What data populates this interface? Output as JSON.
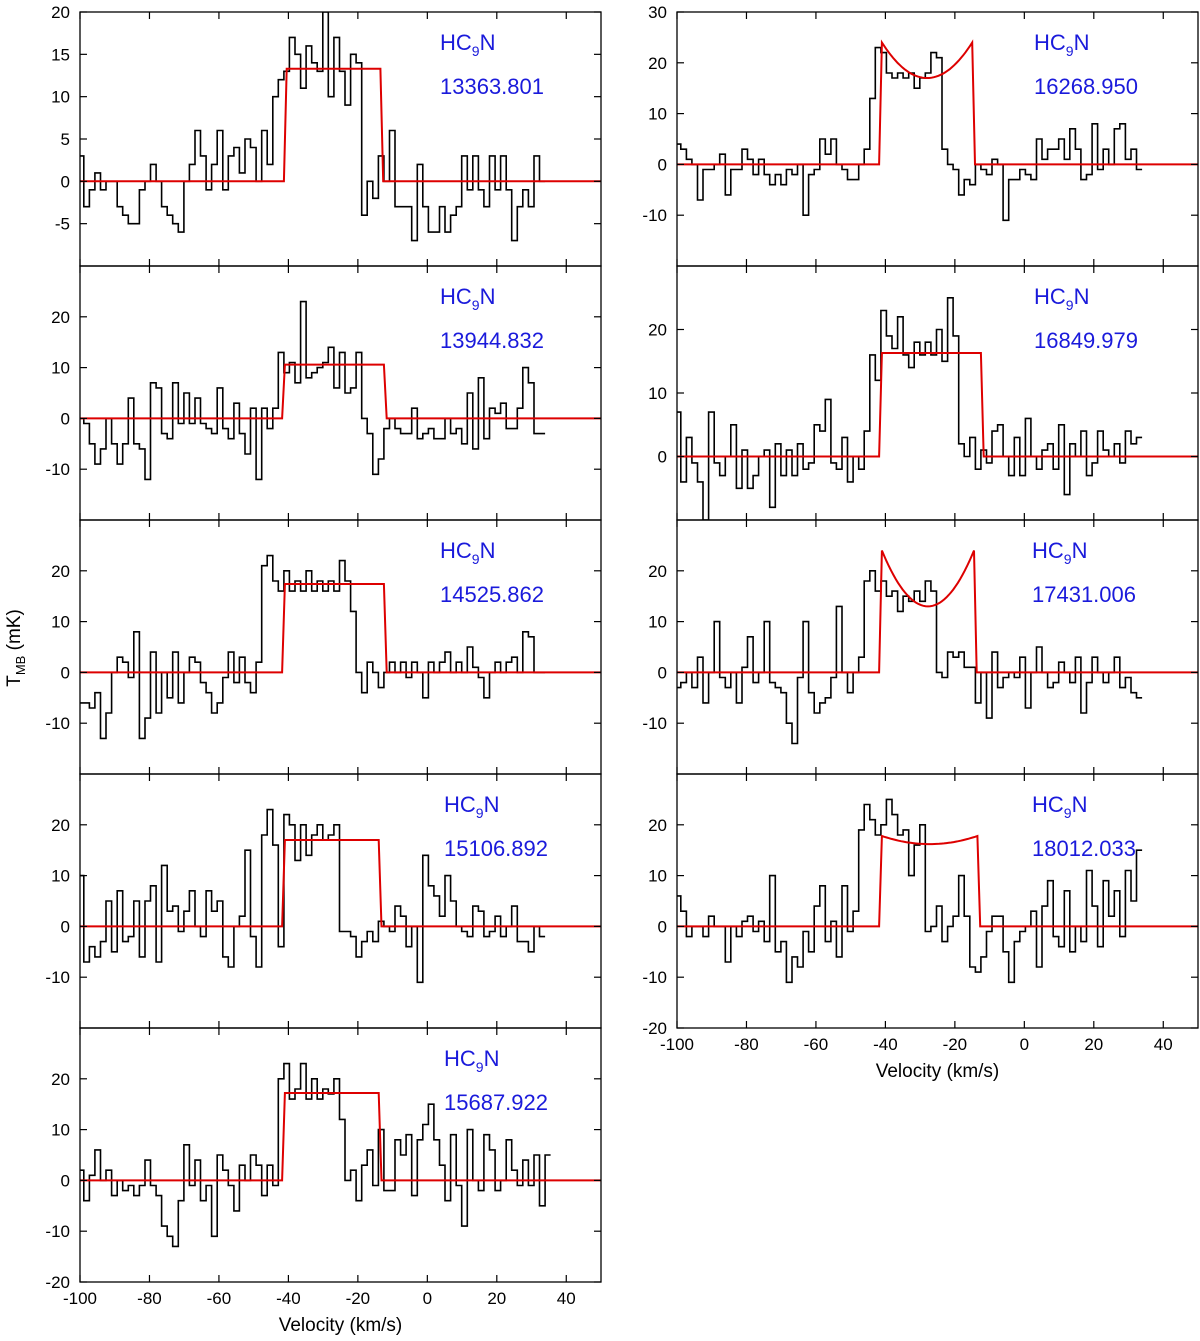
{
  "figure": {
    "xlabel": "Velocity (km/s)",
    "ylabel_main": "T",
    "ylabel_sub": "MB",
    "ylabel_unit": " (mK)",
    "species_main": "HC",
    "species_sub": "9",
    "species_end": "N"
  },
  "colors": {
    "spectrum": "#000000",
    "fit": "#dd0000",
    "label": "#1a1adb",
    "axis": "#000000"
  },
  "chart_data": [
    {
      "type": "line",
      "title": "13363.801",
      "ylim": [
        -10,
        20
      ],
      "yticks": [
        -5,
        0,
        5,
        10,
        15,
        20
      ],
      "xlim": [
        -100,
        50
      ],
      "xticks": [
        -100,
        -80,
        -60,
        -40,
        -20,
        0,
        20,
        40
      ],
      "fit": {
        "v1": -40.5,
        "v2": -13.5,
        "t_low": 13.3,
        "t_high": 13.3
      },
      "series": [
        {
          "name": "spectrum",
          "start": -100.5,
          "step": 1.6,
          "values": [
            3,
            -3,
            -1,
            1,
            -1,
            0,
            0,
            -3,
            -4,
            -5,
            -5,
            -1,
            0,
            2,
            0,
            -3,
            -4,
            -5,
            -6,
            0,
            2,
            6,
            3,
            -1,
            2,
            6,
            -1,
            3,
            4,
            1,
            5,
            4,
            0,
            6,
            2,
            10,
            12,
            13,
            17,
            15,
            11,
            16,
            14,
            13,
            20,
            10,
            17,
            13,
            9,
            15,
            14,
            -4,
            0,
            -2,
            3,
            0,
            6,
            -3,
            -3,
            -3,
            -7,
            2,
            -3,
            -6,
            -6,
            -3,
            -6,
            -4,
            -3,
            3,
            -1,
            3,
            -1,
            -3,
            3,
            -1,
            3,
            -1,
            -7,
            -3,
            -1,
            -3,
            3,
            0
          ]
        }
      ]
    },
    {
      "type": "line",
      "title": "13944.832",
      "ylim": [
        -20,
        30
      ],
      "yticks": [
        -10,
        0,
        10,
        20
      ],
      "xlim": [
        -100,
        50
      ],
      "xticks": [
        -100,
        -80,
        -60,
        -40,
        -20,
        0,
        20,
        40
      ],
      "fit": {
        "v1": -41,
        "v2": -12.5,
        "t_low": 10.6,
        "t_high": 10.6
      },
      "series": [
        {
          "name": "spectrum",
          "start": -100.5,
          "step": 1.6,
          "values": [
            0,
            -1,
            -5,
            -9,
            -6,
            0,
            -5,
            -9,
            -5,
            4,
            -5,
            -6,
            -12,
            7,
            6,
            -3,
            -4,
            7,
            -1,
            5,
            -1,
            4,
            -1,
            -2,
            -3,
            6,
            -2,
            -4,
            3,
            -3,
            -7,
            2,
            -12,
            2,
            -2,
            2,
            13,
            9,
            11,
            7,
            23,
            8,
            9,
            10,
            11,
            14,
            6,
            13,
            5,
            6,
            13,
            0,
            -3,
            -11,
            -8,
            -2,
            0,
            -2,
            -3,
            -3,
            2,
            -4,
            -3,
            -2,
            -4,
            -4,
            0,
            -3,
            -2,
            -5,
            5,
            -6,
            8,
            -4,
            2,
            1,
            3,
            -2,
            -2,
            2,
            10,
            7,
            -3,
            -3
          ]
        }
      ]
    },
    {
      "type": "line",
      "title": "14525.862",
      "ylim": [
        -20,
        30
      ],
      "yticks": [
        -10,
        0,
        10,
        20
      ],
      "xlim": [
        -100,
        50
      ],
      "xticks": [
        -100,
        -80,
        -60,
        -40,
        -20,
        0,
        20,
        40
      ],
      "fit": {
        "v1": -41,
        "v2": -12.5,
        "t_low": 17.4,
        "t_high": 17.4
      },
      "series": [
        {
          "name": "spectrum",
          "start": -100.5,
          "step": 1.6,
          "values": [
            -6,
            -6,
            -7,
            -4,
            -13,
            -8,
            0,
            3,
            2,
            -1,
            8,
            -13,
            -9,
            4,
            -8,
            0,
            -5,
            4,
            -6,
            0,
            3,
            2,
            -2,
            -4,
            -8,
            -6,
            -1,
            4,
            -2,
            3,
            -2,
            -4,
            2,
            21,
            23,
            18,
            16,
            20,
            16,
            18,
            16,
            20,
            16,
            18,
            16,
            18,
            16,
            22,
            18,
            12,
            0,
            -4,
            2,
            0,
            -3,
            0,
            2,
            0,
            2,
            -1,
            2,
            0,
            -5,
            2,
            0,
            2,
            4,
            0,
            2,
            0,
            5,
            1,
            -1,
            -5,
            0,
            2,
            0,
            2,
            3,
            0,
            8,
            7,
            0,
            0
          ]
        }
      ]
    },
    {
      "type": "line",
      "title": "15106.892",
      "ylim": [
        -20,
        30
      ],
      "yticks": [
        -10,
        0,
        10,
        20
      ],
      "xlim": [
        -100,
        50
      ],
      "xticks": [
        -100,
        -80,
        -60,
        -40,
        -20,
        0,
        20,
        40
      ],
      "fit": {
        "v1": -41,
        "v2": -14,
        "t_low": 17.0,
        "t_high": 17.0
      },
      "series": [
        {
          "name": "spectrum",
          "start": -100.5,
          "step": 1.6,
          "values": [
            10,
            -7,
            -4,
            -6,
            -3,
            5,
            -5,
            7,
            -3,
            -2,
            5,
            -6,
            5,
            8,
            -7,
            12,
            3,
            4,
            -1,
            3,
            7,
            0,
            -2,
            7,
            3,
            5,
            -6,
            -8,
            0,
            2,
            15,
            -2,
            -8,
            18,
            23,
            16,
            -4,
            22,
            20,
            13,
            20,
            14,
            18,
            20,
            17,
            18,
            20,
            -1,
            -1,
            -2,
            -6,
            -3,
            -1,
            -3,
            1,
            0,
            -1,
            4,
            2,
            -4,
            0,
            -11,
            14,
            8,
            6,
            2,
            10,
            5,
            0,
            -1,
            -2,
            4,
            3,
            -2,
            -1,
            2,
            -2,
            0,
            4,
            -3,
            -3,
            -5,
            0,
            -2
          ]
        }
      ]
    },
    {
      "type": "line",
      "title": "15687.922",
      "ylim": [
        -20,
        30
      ],
      "yticks": [
        -20,
        -10,
        0,
        10,
        20
      ],
      "xlim": [
        -100,
        50
      ],
      "xticks": [
        -100,
        -80,
        -60,
        -40,
        -20,
        0,
        20,
        40
      ],
      "fit": {
        "v1": -41,
        "v2": -14,
        "t_low": 17.2,
        "t_high": 17.2
      },
      "series": [
        {
          "name": "spectrum",
          "start": -100.5,
          "step": 1.6,
          "values": [
            2,
            -4,
            1,
            6,
            0,
            2,
            -3,
            0,
            -2,
            -1,
            -3,
            -1,
            4,
            -1,
            -3,
            -9,
            -11,
            -13,
            -4,
            7,
            -1,
            4,
            -4,
            -1,
            -11,
            5,
            2,
            -1,
            -6,
            3,
            0,
            5,
            3,
            -3,
            3,
            -1,
            20,
            23,
            16,
            18,
            23,
            16,
            20,
            16,
            18,
            17,
            20,
            12,
            0,
            2,
            -4,
            3,
            6,
            -1,
            10,
            -2,
            -2,
            8,
            5,
            9,
            -3,
            8,
            11,
            15,
            8,
            3,
            -4,
            9,
            -1,
            -9,
            10,
            0,
            -2,
            9,
            6,
            -2,
            0,
            8,
            2,
            -1,
            4,
            -1,
            5,
            -5,
            5
          ]
        }
      ]
    },
    {
      "type": "line",
      "title": "16268.950",
      "ylim": [
        -20,
        30
      ],
      "yticks": [
        -10,
        0,
        10,
        20,
        30
      ],
      "xlim": [
        -100,
        50
      ],
      "xticks": [
        -100,
        -80,
        -60,
        -40,
        -20,
        0,
        20,
        40
      ],
      "fit": {
        "v1": -41,
        "v2": -15,
        "t_low": 17.0,
        "t_high": 24.0
      },
      "series": [
        {
          "name": "spectrum",
          "start": -100.5,
          "step": 1.6,
          "values": [
            4,
            3,
            1,
            0,
            -7,
            -1,
            -1,
            0,
            2,
            -6,
            -1,
            -1,
            3,
            1,
            -2,
            1,
            -2,
            -4,
            -2,
            -4,
            -1,
            -2,
            0,
            -10,
            -2,
            -1,
            5,
            2,
            5,
            0,
            -1,
            -3,
            -3,
            0,
            3,
            13,
            23,
            22,
            18,
            17,
            18,
            17,
            18,
            15,
            17,
            18,
            22,
            21,
            3,
            0,
            -1,
            -6,
            -3,
            -4,
            0,
            -1,
            -2,
            1,
            0,
            -11,
            -3,
            -3,
            -1,
            -2,
            -3,
            5,
            1,
            3,
            3,
            5,
            1,
            7,
            3,
            -3,
            -2,
            8,
            -1,
            3,
            0,
            7,
            8,
            1,
            3,
            -1
          ]
        }
      ]
    },
    {
      "type": "line",
      "title": "16849.979",
      "ylim": [
        -10,
        30
      ],
      "yticks": [
        0,
        10,
        20
      ],
      "xlim": [
        -100,
        50
      ],
      "xticks": [
        -100,
        -80,
        -60,
        -40,
        -20,
        0,
        20,
        40
      ],
      "fit": {
        "v1": -41,
        "v2": -12.5,
        "t_low": 16.3,
        "t_high": 16.3
      },
      "series": [
        {
          "name": "spectrum",
          "start": -100.5,
          "step": 1.6,
          "values": [
            7,
            -4,
            3,
            -1,
            -4,
            -10,
            7,
            -1,
            -3,
            0,
            5,
            -5,
            1,
            -5,
            -3,
            0,
            1,
            -8,
            2,
            -3,
            1,
            -3,
            2,
            -2,
            -1,
            5,
            4,
            9,
            -1,
            -2,
            3,
            -4,
            0,
            -2,
            4,
            16,
            12,
            23,
            19,
            17,
            22,
            16,
            14,
            18,
            16,
            18,
            16,
            20,
            15,
            25,
            19,
            2,
            0,
            3,
            -2,
            1,
            -1,
            4,
            5,
            0,
            -3,
            3,
            -3,
            6,
            0,
            -2,
            1,
            2,
            -2,
            5,
            -6,
            2,
            0,
            4,
            -3,
            -1,
            4,
            1,
            0,
            2,
            -1,
            4,
            2,
            3
          ]
        }
      ]
    },
    {
      "type": "line",
      "title": "17431.006",
      "ylim": [
        -20,
        30
      ],
      "yticks": [
        -10,
        0,
        10,
        20
      ],
      "xlim": [
        -100,
        50
      ],
      "xticks": [
        -100,
        -80,
        -60,
        -40,
        -20,
        0,
        20,
        40
      ],
      "fit": {
        "v1": -41,
        "v2": -14.5,
        "t_low": 13.0,
        "t_high": 24.0
      },
      "series": [
        {
          "name": "spectrum",
          "start": -100.5,
          "step": 1.6,
          "values": [
            -3,
            -2,
            0,
            -3,
            3,
            -6,
            0,
            10,
            -1,
            -3,
            0,
            -6,
            1,
            7,
            -2,
            0,
            10,
            -2,
            -3,
            -4,
            -10,
            -14,
            -1,
            10,
            -4,
            -8,
            -6,
            -5,
            -1,
            13,
            0,
            -4,
            0,
            3,
            18,
            20,
            16,
            18,
            15,
            16,
            12,
            15,
            14,
            16,
            14,
            18,
            16,
            0,
            -1,
            4,
            3,
            4,
            1,
            1,
            -6,
            0,
            -9,
            4,
            -3,
            -1,
            0,
            -1,
            3,
            -7,
            0,
            5,
            0,
            -3,
            -2,
            2,
            0,
            -2,
            3,
            -8,
            -2,
            3,
            0,
            -2,
            0,
            3,
            -3,
            -1,
            -4,
            -5
          ]
        }
      ]
    },
    {
      "type": "line",
      "title": "18012.033",
      "ylim": [
        -20,
        30
      ],
      "yticks": [
        -20,
        -10,
        0,
        10,
        20
      ],
      "xlim": [
        -100,
        50
      ],
      "xticks": [
        -100,
        -80,
        -60,
        -40,
        -20,
        0,
        20,
        40
      ],
      "fit": {
        "v1": -41,
        "v2": -13.5,
        "t_low": 16.2,
        "t_high": 17.8
      },
      "series": [
        {
          "name": "spectrum",
          "start": -100.5,
          "step": 1.6,
          "values": [
            6,
            3,
            -2,
            0,
            0,
            -2,
            2,
            0,
            0,
            -7,
            0,
            -2,
            1,
            2,
            -1,
            1,
            -3,
            10,
            -5,
            -3,
            -11,
            -6,
            -8,
            -1,
            -5,
            4,
            8,
            -3,
            1,
            -6,
            8,
            -1,
            3,
            19,
            24,
            21,
            18,
            20,
            25,
            22,
            18,
            19,
            10,
            16,
            20,
            -1,
            0,
            4,
            -3,
            0,
            2,
            10,
            2,
            -8,
            -9,
            -6,
            -1,
            2,
            2,
            -5,
            -11,
            -3,
            -1,
            0,
            3,
            -8,
            4,
            9,
            -2,
            -4,
            7,
            -5,
            0,
            -3,
            11,
            4,
            -4,
            9,
            2,
            7,
            -2,
            11,
            5,
            15
          ]
        }
      ]
    }
  ]
}
